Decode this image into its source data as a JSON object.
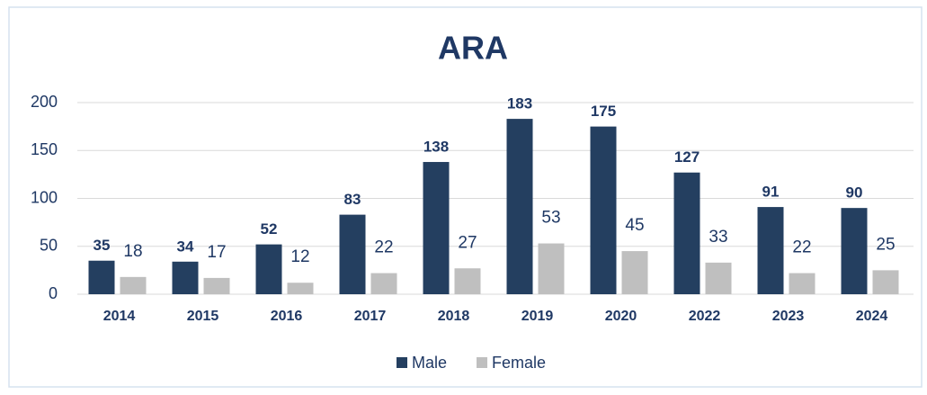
{
  "chart_data": {
    "type": "bar",
    "title": "ARA",
    "categories": [
      "2014",
      "2015",
      "2016",
      "2017",
      "2018",
      "2019",
      "2020",
      "2022",
      "2023",
      "2024"
    ],
    "series": [
      {
        "name": "Male",
        "color": "#243f60",
        "values": [
          35,
          34,
          52,
          83,
          138,
          183,
          175,
          127,
          91,
          90
        ]
      },
      {
        "name": "Female",
        "color": "#bfbfbf",
        "values": [
          18,
          17,
          12,
          22,
          27,
          53,
          45,
          33,
          22,
          25
        ]
      }
    ],
    "ylim": [
      0,
      200
    ],
    "yticks": [
      0,
      50,
      100,
      150,
      200
    ],
    "grid": true,
    "legend": "bottom"
  }
}
